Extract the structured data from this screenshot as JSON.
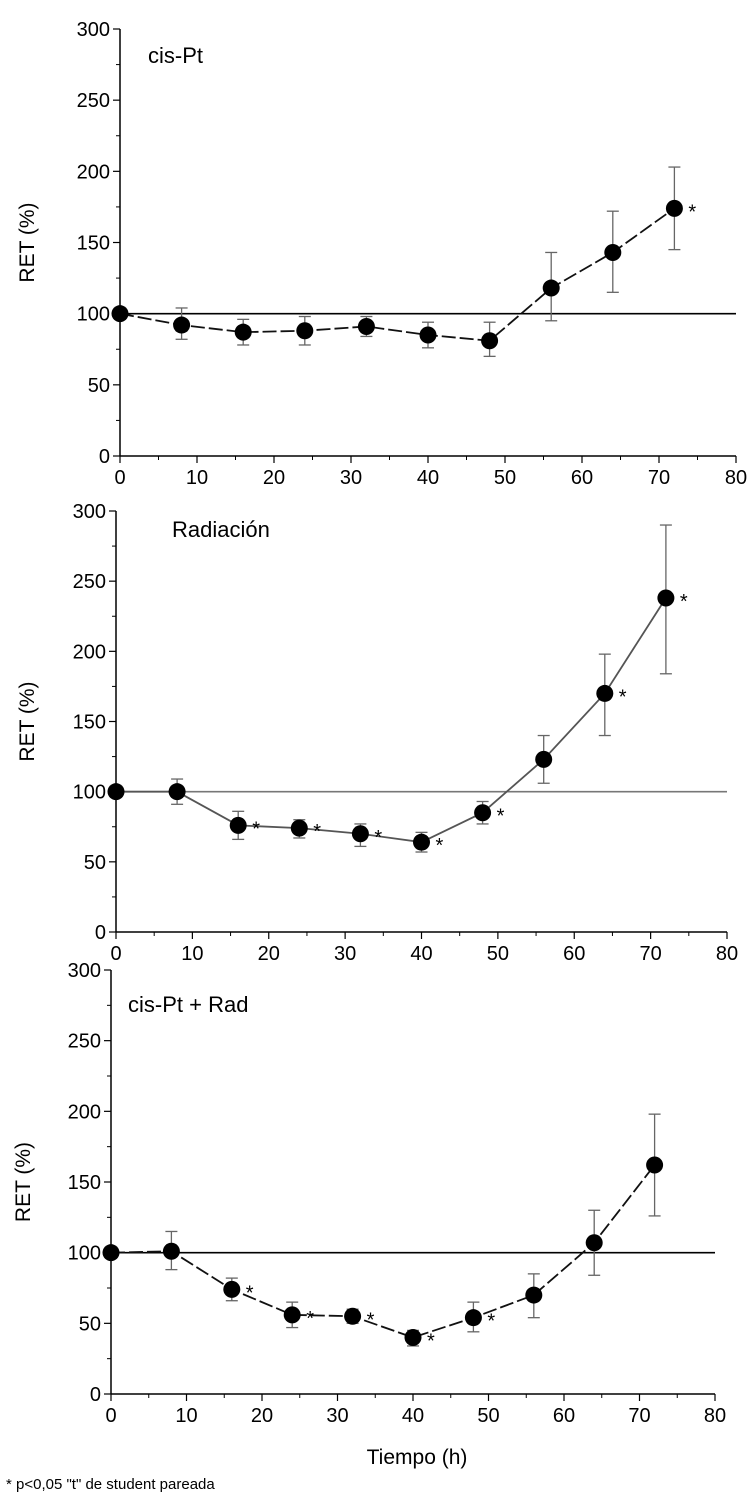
{
  "chart_data": [
    {
      "type": "line",
      "title": "cis-Pt",
      "ylabel": "RET (%)",
      "xlabel": "",
      "xlim": [
        0,
        80
      ],
      "ylim": [
        0,
        300
      ],
      "xticks": [
        "0",
        "10",
        "20",
        "30",
        "40",
        "50",
        "60",
        "70",
        "80"
      ],
      "yticks": [
        "0",
        "50",
        "100",
        "150",
        "200",
        "250",
        "300"
      ],
      "reference_line": 100,
      "series": [
        {
          "x": [
            0,
            8,
            16,
            24,
            32,
            40,
            48,
            56,
            64,
            72
          ],
          "y": [
            100,
            92,
            87,
            88,
            91,
            85,
            81,
            118,
            143,
            174
          ],
          "err_low": [
            100,
            82,
            78,
            78,
            84,
            76,
            70,
            95,
            115,
            145
          ],
          "err_high": [
            100,
            104,
            96,
            98,
            98,
            94,
            94,
            143,
            172,
            203
          ],
          "significant": [
            false,
            false,
            false,
            false,
            false,
            false,
            false,
            false,
            false,
            true
          ]
        }
      ]
    },
    {
      "type": "line",
      "title": "Radiación",
      "ylabel": "RET (%)",
      "xlabel": "",
      "xlim": [
        0,
        80
      ],
      "ylim": [
        0,
        300
      ],
      "xticks": [
        "0",
        "10",
        "20",
        "30",
        "40",
        "50",
        "60",
        "70",
        "80"
      ],
      "yticks": [
        "0",
        "50",
        "100",
        "150",
        "200",
        "250",
        "300"
      ],
      "reference_line": 100,
      "series": [
        {
          "x": [
            0,
            8,
            16,
            24,
            32,
            40,
            48,
            56,
            64,
            72
          ],
          "y": [
            100,
            100,
            76,
            74,
            70,
            64,
            85,
            123,
            170,
            238
          ],
          "err_low": [
            100,
            91,
            66,
            67,
            61,
            57,
            77,
            106,
            140,
            184
          ],
          "err_high": [
            100,
            109,
            86,
            80,
            77,
            71,
            93,
            140,
            198,
            290
          ],
          "significant": [
            false,
            false,
            true,
            true,
            true,
            true,
            true,
            false,
            true,
            true
          ]
        }
      ]
    },
    {
      "type": "line",
      "title": "cis-Pt + Rad",
      "ylabel": "RET (%)",
      "xlabel": "Tiempo (h)",
      "xlim": [
        0,
        80
      ],
      "ylim": [
        0,
        300
      ],
      "xticks": [
        "0",
        "10",
        "20",
        "30",
        "40",
        "50",
        "60",
        "70",
        "80"
      ],
      "yticks": [
        "0",
        "50",
        "100",
        "150",
        "200",
        "250",
        "300"
      ],
      "reference_line": 100,
      "series": [
        {
          "x": [
            0,
            8,
            16,
            24,
            32,
            40,
            48,
            56,
            64,
            72
          ],
          "y": [
            100,
            101,
            74,
            56,
            55,
            40,
            54,
            70,
            107,
            162
          ],
          "err_low": [
            100,
            88,
            66,
            47,
            50,
            34,
            44,
            54,
            84,
            126
          ],
          "err_high": [
            100,
            115,
            82,
            65,
            60,
            45,
            65,
            85,
            130,
            198
          ],
          "significant": [
            false,
            false,
            true,
            true,
            true,
            true,
            true,
            false,
            false,
            false
          ]
        }
      ]
    }
  ],
  "star_symbol": "*",
  "footnote": "* p<0,05 \"t\" de student pareada"
}
